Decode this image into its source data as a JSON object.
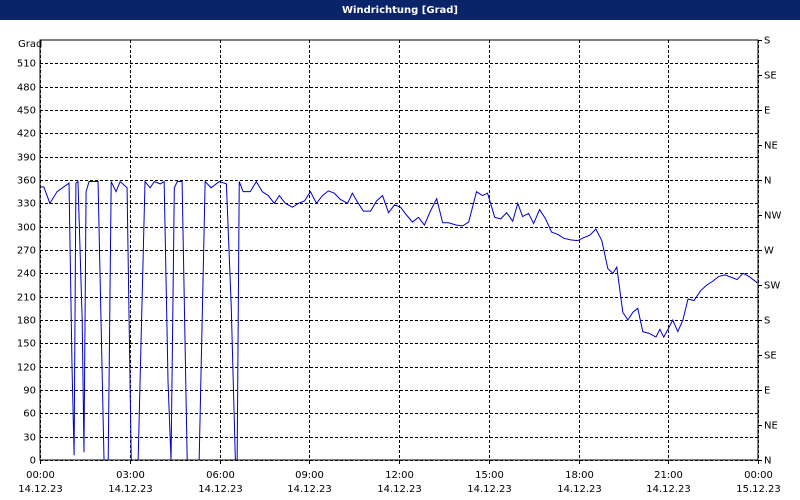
{
  "chart_data": {
    "type": "line",
    "title": "Windrichtung [Grad]",
    "y_label": "Grad",
    "xlim": [
      0,
      24
    ],
    "xticks": [
      {
        "value": 0,
        "label": "00:00"
      },
      {
        "value": 3,
        "label": "03:00"
      },
      {
        "value": 6,
        "label": "06:00"
      },
      {
        "value": 9,
        "label": "09:00"
      },
      {
        "value": 12,
        "label": "12:00"
      },
      {
        "value": 15,
        "label": "15:00"
      },
      {
        "value": 18,
        "label": "18:00"
      },
      {
        "value": 21,
        "label": "21:00"
      },
      {
        "value": 24,
        "label": "00:00"
      }
    ],
    "xtick_dates": [
      "14.12.23",
      "14.12.23",
      "14.12.23",
      "14.12.23",
      "14.12.23",
      "14.12.23",
      "14.12.23",
      "14.12.23",
      "15.12.23"
    ],
    "ylim": [
      0,
      540
    ],
    "yticks": [
      0,
      30,
      60,
      90,
      120,
      150,
      180,
      210,
      240,
      270,
      300,
      330,
      360,
      390,
      420,
      450,
      480,
      510
    ],
    "y2lim": [
      0,
      540
    ],
    "y2ticks": [
      {
        "value": 0,
        "label": "N"
      },
      {
        "value": 45,
        "label": "NE"
      },
      {
        "value": 90,
        "label": "E"
      },
      {
        "value": 135,
        "label": "SE"
      },
      {
        "value": 180,
        "label": "S"
      },
      {
        "value": 225,
        "label": "SW"
      },
      {
        "value": 270,
        "label": "W"
      },
      {
        "value": 315,
        "label": "NW"
      },
      {
        "value": 360,
        "label": "N"
      },
      {
        "value": 405,
        "label": "NE"
      },
      {
        "value": 450,
        "label": "E"
      },
      {
        "value": 495,
        "label": "SE"
      },
      {
        "value": 540,
        "label": "S"
      }
    ],
    "grid": true,
    "color": "#0000cc",
    "x": [
      0,
      0.13,
      0.33,
      0.57,
      0.97,
      1.07,
      1.14,
      1.2,
      1.27,
      1.41,
      1.47,
      1.54,
      1.64,
      1.81,
      1.94,
      2.14,
      2.28,
      2.38,
      2.54,
      2.68,
      2.91,
      3.05,
      3.11,
      3.21,
      3.28,
      3.51,
      3.68,
      3.82,
      4.02,
      4.15,
      4.28,
      4.38,
      4.49,
      4.59,
      4.75,
      4.92,
      5.09,
      5.32,
      5.52,
      5.72,
      5.99,
      6.23,
      6.39,
      6.53,
      6.59,
      6.66,
      6.79,
      7.03,
      7.23,
      7.43,
      7.63,
      7.83,
      8.0,
      8.2,
      8.44,
      8.64,
      8.84,
      9.04,
      9.24,
      9.44,
      9.64,
      9.84,
      10.04,
      10.28,
      10.44,
      10.64,
      10.81,
      11.05,
      11.25,
      11.45,
      11.65,
      11.85,
      12.05,
      12.25,
      12.45,
      12.65,
      12.85,
      13.05,
      13.26,
      13.46,
      13.66,
      13.92,
      14.13,
      14.33,
      14.59,
      14.79,
      14.96,
      15.2,
      15.4,
      15.6,
      15.8,
      15.97,
      16.13,
      16.33,
      16.5,
      16.7,
      16.9,
      17.1,
      17.31,
      17.51,
      17.74,
      17.97,
      18.18,
      18.38,
      18.58,
      18.78,
      18.98,
      19.15,
      19.28,
      19.48,
      19.65,
      19.82,
      19.98,
      20.15,
      20.35,
      20.59,
      20.72,
      20.85,
      20.99,
      21.15,
      21.32,
      21.49,
      21.66,
      21.86,
      22.09,
      22.29,
      22.49,
      22.69,
      22.89,
      23.1,
      23.3,
      23.5,
      23.7,
      23.97
    ],
    "values": [
      351,
      351,
      330,
      345,
      356,
      120,
      6,
      356,
      358,
      180,
      10,
      345,
      358,
      358,
      358,
      0,
      0,
      358,
      345,
      358,
      350,
      0,
      0,
      0,
      0,
      358,
      350,
      358,
      355,
      358,
      100,
      0,
      350,
      358,
      358,
      0,
      0,
      0,
      358,
      350,
      358,
      355,
      200,
      0,
      0,
      358,
      345,
      345,
      358,
      345,
      340,
      330,
      340,
      330,
      325,
      330,
      333,
      345,
      330,
      340,
      346,
      343,
      335,
      330,
      343,
      330,
      320,
      320,
      333,
      340,
      318,
      328,
      325,
      315,
      306,
      312,
      302,
      320,
      336,
      305,
      305,
      302,
      301,
      306,
      345,
      340,
      343,
      312,
      310,
      318,
      307,
      330,
      313,
      317,
      304,
      322,
      310,
      293,
      290,
      285,
      283,
      282,
      286,
      289,
      297,
      282,
      246,
      240,
      248,
      190,
      180,
      190,
      195,
      165,
      163,
      158,
      168,
      158,
      168,
      180,
      165,
      180,
      207,
      205,
      218,
      225,
      230,
      236,
      238,
      235,
      232,
      240,
      236,
      228
    ]
  }
}
